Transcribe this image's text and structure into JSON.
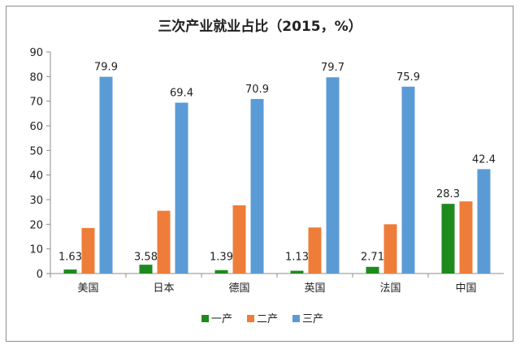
{
  "chart_data": {
    "type": "bar",
    "title": "三次产业就业占比（2015，%）",
    "categories": [
      "美国",
      "日本",
      "德国",
      "英国",
      "法国",
      "中国"
    ],
    "series": [
      {
        "name": "一产",
        "color": "#1e8a1e",
        "values": [
          1.63,
          3.58,
          1.39,
          1.13,
          2.71,
          28.3
        ],
        "labels": [
          "1.63",
          "3.58",
          "1.39",
          "1.13",
          "2.71",
          "28.3"
        ]
      },
      {
        "name": "二产",
        "color": "#ee7d3a",
        "values": [
          18.5,
          25.5,
          27.7,
          18.7,
          20.0,
          29.3
        ]
      },
      {
        "name": "三产",
        "color": "#5b9bd5",
        "values": [
          79.9,
          69.4,
          70.9,
          79.7,
          75.9,
          42.4
        ],
        "labels": [
          "79.9",
          "69.4",
          "70.9",
          "79.7",
          "75.9",
          "42.4"
        ]
      }
    ],
    "xlabel": "",
    "ylabel": "",
    "ylim": [
      0,
      90
    ],
    "yticks": [
      0,
      10,
      20,
      30,
      40,
      50,
      60,
      70,
      80,
      90
    ],
    "grid": false,
    "legend": "bottom"
  }
}
